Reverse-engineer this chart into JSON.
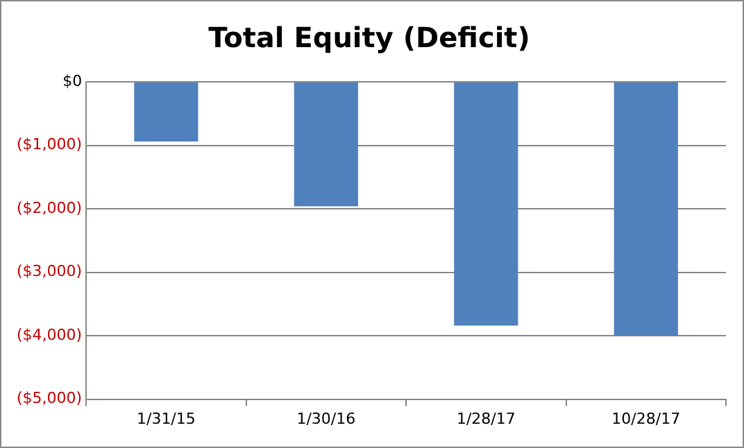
{
  "chart_data": {
    "type": "bar",
    "title": "Total Equity (Deficit)",
    "categories": [
      "1/31/15",
      "1/30/16",
      "1/28/17",
      "10/28/17"
    ],
    "values": [
      -940,
      -1960,
      -3840,
      -4000
    ],
    "color": "#4f81bd",
    "ylim": [
      -5000,
      0
    ],
    "yticks": [
      {
        "value": -5000,
        "label": "($5,000)"
      },
      {
        "value": -4000,
        "label": "($4,000)"
      },
      {
        "value": -3000,
        "label": "($3,000)"
      },
      {
        "value": -2000,
        "label": "($2,000)"
      },
      {
        "value": -1000,
        "label": "($1,000)"
      },
      {
        "value": 0,
        "label": "$0"
      }
    ],
    "grid": "y",
    "legend": false
  }
}
